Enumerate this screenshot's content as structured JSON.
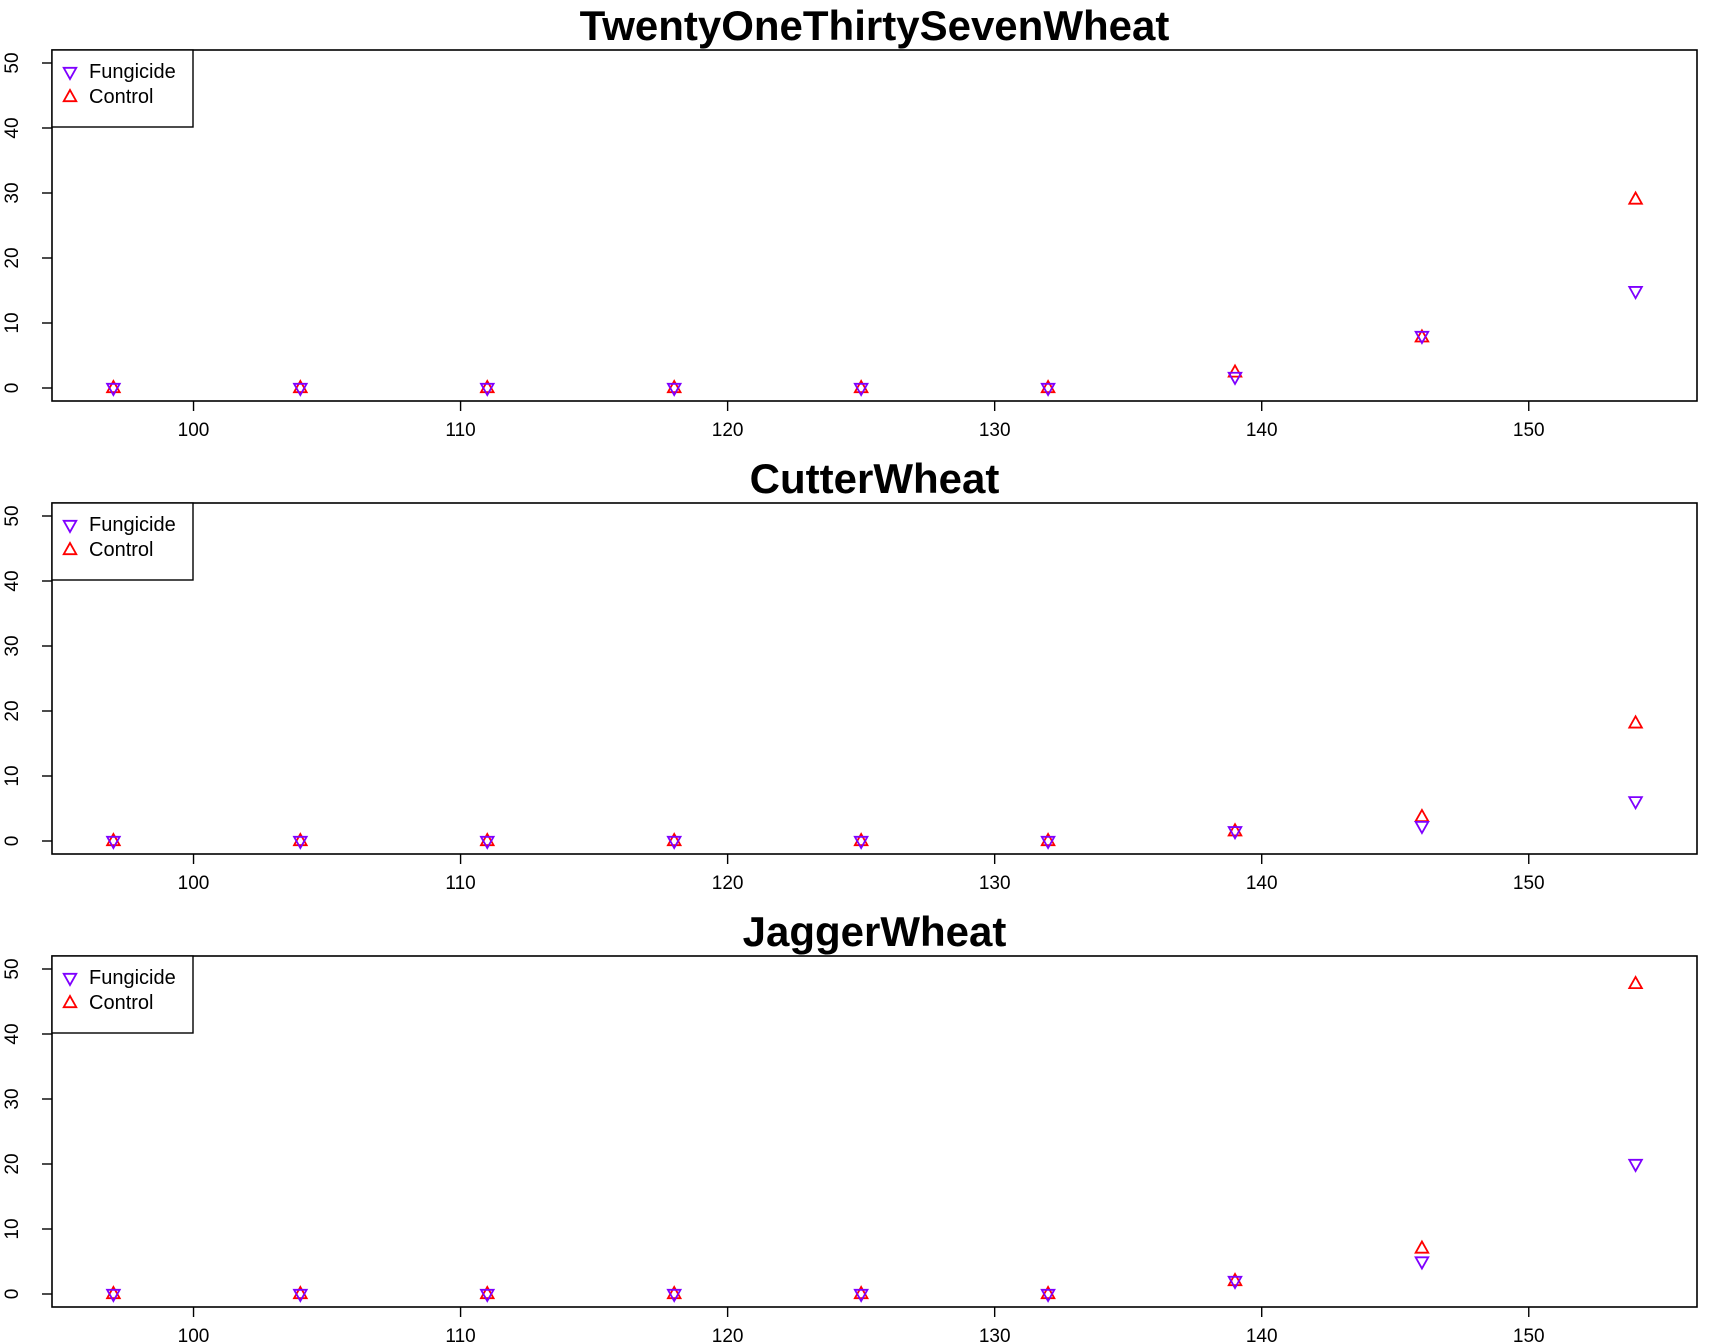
{
  "colors": {
    "fungicide": "#7f00ff",
    "control": "#ff0000",
    "axis": "#000000"
  },
  "chart_data": [
    {
      "type": "scatter",
      "title": "TwentyOneThirtySevenWheat",
      "xlabel": "",
      "ylabel": "",
      "xlim": [
        94.7,
        156.3
      ],
      "ylim": [
        -2,
        52
      ],
      "xticks": [
        100,
        110,
        120,
        130,
        140,
        150
      ],
      "yticks": [
        0,
        10,
        20,
        30,
        40,
        50
      ],
      "legend": {
        "position": "top-left",
        "entries": [
          "Fungicide",
          "Control"
        ]
      },
      "x": [
        97,
        104,
        111,
        118,
        125,
        132,
        139,
        146,
        154
      ],
      "series": [
        {
          "name": "Fungicide",
          "marker": "triangle-down",
          "color": "#7f00ff",
          "values": [
            0,
            0,
            0,
            0,
            0,
            0,
            1.7,
            8,
            14.9
          ]
        },
        {
          "name": "Control",
          "marker": "triangle-up",
          "color": "#ff0000",
          "values": [
            0,
            0,
            0,
            0,
            0,
            0,
            2.4,
            7.8,
            29
          ]
        }
      ]
    },
    {
      "type": "scatter",
      "title": "CutterWheat",
      "xlabel": "",
      "ylabel": "",
      "xlim": [
        94.7,
        156.3
      ],
      "ylim": [
        -2,
        52
      ],
      "xticks": [
        100,
        110,
        120,
        130,
        140,
        150
      ],
      "yticks": [
        0,
        10,
        20,
        30,
        40,
        50
      ],
      "legend": {
        "position": "top-left",
        "entries": [
          "Fungicide",
          "Control"
        ]
      },
      "x": [
        97,
        104,
        111,
        118,
        125,
        132,
        139,
        146,
        154
      ],
      "series": [
        {
          "name": "Fungicide",
          "marker": "triangle-down",
          "color": "#7f00ff",
          "values": [
            0,
            0,
            0,
            0,
            0,
            0,
            1.5,
            2.3,
            6.1
          ]
        },
        {
          "name": "Control",
          "marker": "triangle-up",
          "color": "#ff0000",
          "values": [
            0,
            0,
            0,
            0,
            0,
            0,
            1.5,
            3.7,
            18.1
          ]
        }
      ]
    },
    {
      "type": "scatter",
      "title": "JaggerWheat",
      "xlabel": "",
      "ylabel": "",
      "xlim": [
        94.7,
        156.3
      ],
      "ylim": [
        -2,
        52
      ],
      "xticks": [
        100,
        110,
        120,
        130,
        140,
        150
      ],
      "yticks": [
        0,
        10,
        20,
        30,
        40,
        50
      ],
      "legend": {
        "position": "top-left",
        "entries": [
          "Fungicide",
          "Control"
        ]
      },
      "x": [
        97,
        104,
        111,
        118,
        125,
        132,
        139,
        146,
        154
      ],
      "series": [
        {
          "name": "Fungicide",
          "marker": "triangle-down",
          "color": "#7f00ff",
          "values": [
            0,
            0,
            0,
            0,
            0,
            0,
            2,
            5,
            20
          ]
        },
        {
          "name": "Control",
          "marker": "triangle-up",
          "color": "#ff0000",
          "values": [
            0,
            0,
            0,
            0,
            0,
            0,
            2,
            7,
            47.7
          ]
        }
      ]
    }
  ]
}
